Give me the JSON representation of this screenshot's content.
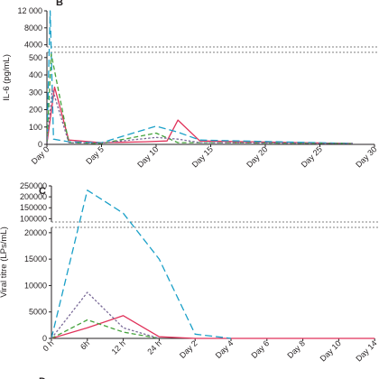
{
  "chart_data": [
    {
      "panel": "B",
      "type": "line",
      "title": "",
      "xlabel": "",
      "ylabel": "IL-6 (pg/mL)",
      "x_ticks": [
        "Day 0",
        "Day 5",
        "Day 10",
        "Day 15",
        "Day 20",
        "Day 25",
        "Day 30"
      ],
      "y_ticks_upper": [
        "12 000",
        "8000",
        "4000"
      ],
      "y_ticks_lower": [
        "500",
        "400",
        "300",
        "200",
        "100",
        "0"
      ],
      "xlim": [
        0,
        30
      ],
      "ylim_upper": [
        3500,
        12000
      ],
      "ylim_lower": [
        0,
        530
      ],
      "axis_break": true,
      "grid": false,
      "series": [
        {
          "color": "#e0325a",
          "dash": "solid",
          "x": [
            0,
            0.7,
            2,
            5,
            9,
            11,
            12,
            14,
            28
          ],
          "y": [
            5,
            330,
            25,
            10,
            15,
            20,
            140,
            20,
            5
          ]
        },
        {
          "color": "#1aa0c8",
          "dash": "long",
          "x": [
            0,
            0.3,
            0.6,
            2,
            5,
            10,
            12,
            14,
            28
          ],
          "y": [
            10,
            12000,
            30,
            15,
            10,
            105,
            70,
            25,
            5
          ]
        },
        {
          "color": "#45a23c",
          "dash": "medium",
          "x": [
            0,
            0.4,
            2,
            5,
            10,
            12,
            14,
            28
          ],
          "y": [
            5,
            520,
            10,
            5,
            65,
            10,
            10,
            5
          ]
        },
        {
          "color": "#7a6a98",
          "dash": "short",
          "x": [
            0,
            0.5,
            2,
            5,
            10,
            12,
            14,
            28
          ],
          "y": [
            5,
            320,
            10,
            8,
            40,
            30,
            10,
            5
          ]
        }
      ]
    },
    {
      "panel": "C",
      "type": "line",
      "title": "",
      "xlabel": "",
      "ylabel": "Viral titre (LPs/mL)",
      "x_ticks": [
        "0 h",
        "6h",
        "12 h",
        "24 h",
        "Day 2",
        "Day 4",
        "Day 6",
        "Day 8",
        "Day 10",
        "Day 14"
      ],
      "y_ticks_upper": [
        "250000",
        "200000",
        "150000",
        "100000"
      ],
      "y_ticks_lower": [
        "20000",
        "15000",
        "10000",
        "5000",
        "0"
      ],
      "ylim_upper": [
        85000,
        250000
      ],
      "ylim_lower": [
        0,
        21000
      ],
      "axis_break": true,
      "grid": false,
      "series": [
        {
          "color": "#e0325a",
          "dash": "solid",
          "x": [
            "0 h",
            "6h",
            "12 h",
            "24 h",
            "Day 2",
            "Day 4",
            "Day 14"
          ],
          "y": [
            0,
            2000,
            4300,
            300,
            0,
            0,
            0
          ]
        },
        {
          "color": "#1aa0c8",
          "dash": "long",
          "x": [
            "0 h",
            "6h",
            "12 h",
            "24 h",
            "Day 2",
            "Day 4"
          ],
          "y": [
            0,
            230000,
            125000,
            15000,
            800,
            0
          ]
        },
        {
          "color": "#45a23c",
          "dash": "medium",
          "x": [
            "0 h",
            "6h",
            "12 h",
            "24 h"
          ],
          "y": [
            0,
            3500,
            1200,
            0
          ]
        },
        {
          "color": "#7a6a98",
          "dash": "short",
          "x": [
            "0 h",
            "6h",
            "12 h",
            "24 h"
          ],
          "y": [
            0,
            8700,
            2000,
            0
          ]
        }
      ]
    }
  ]
}
